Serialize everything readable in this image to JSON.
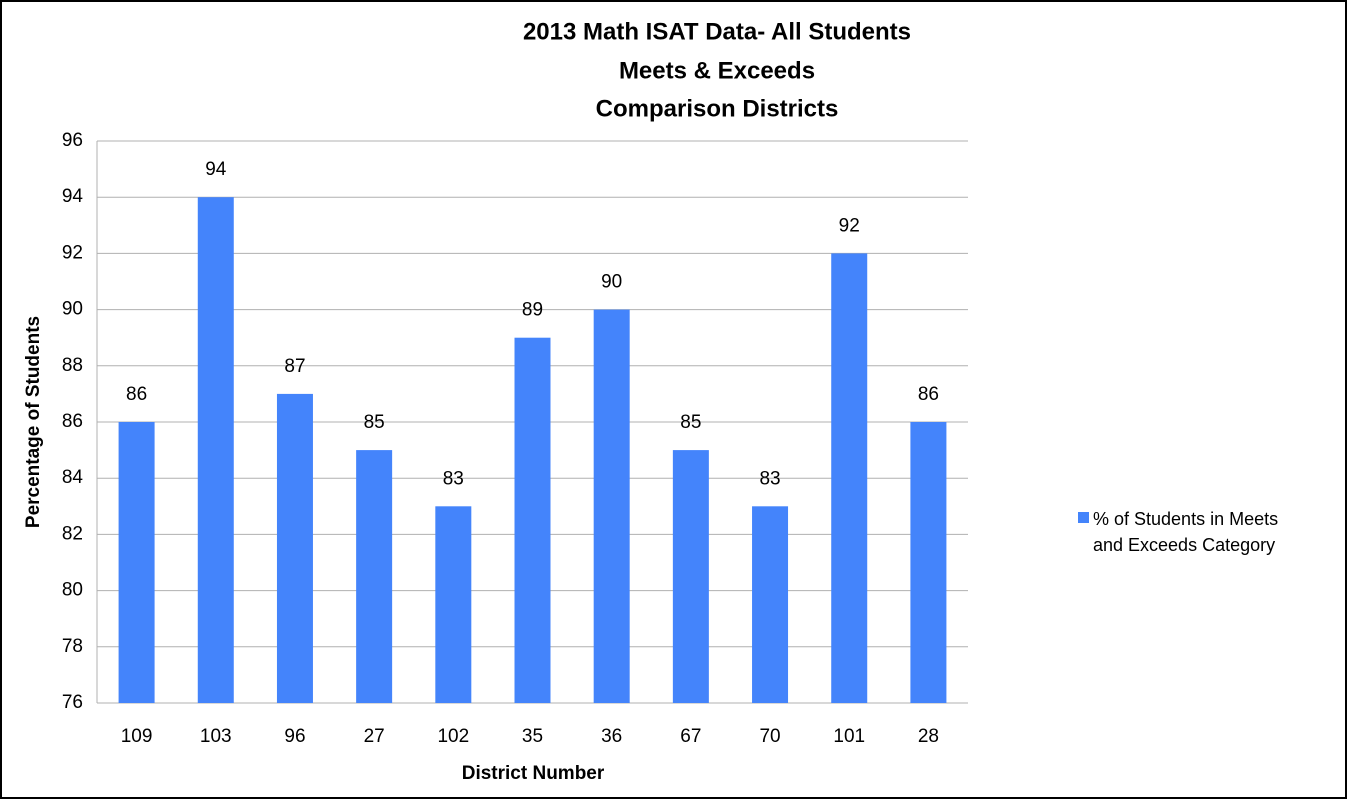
{
  "chart_data": {
    "type": "bar",
    "title": [
      "2013 Math ISAT Data- All Students",
      "Meets & Exceeds",
      "Comparison Districts"
    ],
    "x_label": "District Number",
    "y_label": "Percentage of Students",
    "categories": [
      "109",
      "103",
      "96",
      "27",
      "102",
      "35",
      "36",
      "67",
      "70",
      "101",
      "28"
    ],
    "series": [
      {
        "name": "% of Students in Meets and Exceeds Category",
        "color": "#4484fb",
        "values": [
          86,
          94,
          87,
          85,
          83,
          89,
          90,
          85,
          83,
          92,
          86
        ]
      }
    ],
    "ylim": [
      76,
      96
    ],
    "yticks": [
      76,
      78,
      80,
      82,
      84,
      86,
      88,
      90,
      92,
      94,
      96
    ],
    "grid": true,
    "legend": "right"
  }
}
